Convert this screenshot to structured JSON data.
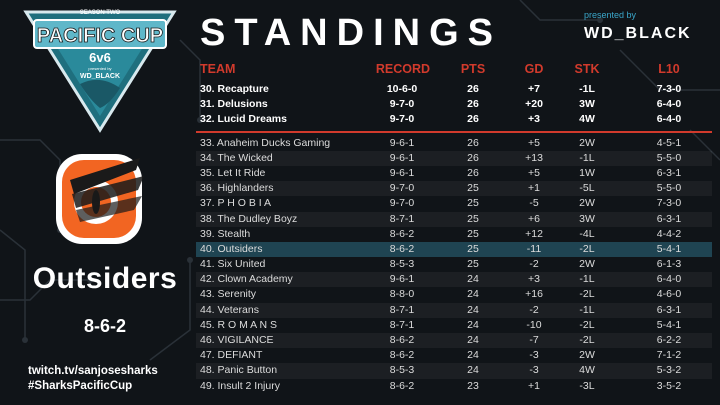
{
  "event": {
    "logo_title": "PACIFIC CUP",
    "logo_format": "6v6",
    "logo_season": "SEASON TWO",
    "logo_presented": "presented by",
    "logo_sponsor": "WD_BLACK"
  },
  "header": {
    "title": "STANDINGS",
    "presented_by": "presented by",
    "sponsor": "WD_BLACK"
  },
  "featured_team": {
    "name": "Outsiders",
    "record": "8-6-2"
  },
  "social": {
    "twitch": "twitch.tv/sanjosesharks",
    "hashtag": "#SharksPacificCup"
  },
  "colors": {
    "accent": "#d13a2c",
    "highlight_row": "#1f4452",
    "logo_teal": "#5fb7c9",
    "team_orange": "#f26522"
  },
  "table": {
    "columns": {
      "team": "TEAM",
      "record": "RECORD",
      "pts": "PTS",
      "gd": "GD",
      "stk": "STK",
      "l10": "L10"
    },
    "top_rows": [
      {
        "team": "30.  Recapture",
        "record": "10-6-0",
        "pts": "26",
        "gd": "+7",
        "stk": "-1L",
        "l10": "7-3-0"
      },
      {
        "team": "31.  Delusions",
        "record": "9-7-0",
        "pts": "26",
        "gd": "+20",
        "stk": "3W",
        "l10": "6-4-0"
      },
      {
        "team": "32.  Lucid Dreams",
        "record": "9-7-0",
        "pts": "26",
        "gd": "+3",
        "stk": "4W",
        "l10": "6-4-0"
      }
    ],
    "rows": [
      {
        "team": "33.  Anaheim Ducks Gaming",
        "record": "9-6-1",
        "pts": "26",
        "gd": "+5",
        "stk": "2W",
        "l10": "4-5-1"
      },
      {
        "team": "34.  The Wicked",
        "record": "9-6-1",
        "pts": "26",
        "gd": "+13",
        "stk": "-1L",
        "l10": "5-5-0"
      },
      {
        "team": "35.  Let It Ride",
        "record": "9-6-1",
        "pts": "26",
        "gd": "+5",
        "stk": "1W",
        "l10": "6-3-1"
      },
      {
        "team": "36.  Highlanders",
        "record": "9-7-0",
        "pts": "25",
        "gd": "+1",
        "stk": "-5L",
        "l10": "5-5-0"
      },
      {
        "team": "37.  P H O B I A",
        "record": "9-7-0",
        "pts": "25",
        "gd": "-5",
        "stk": "2W",
        "l10": "7-3-0"
      },
      {
        "team": "38.  The Dudley Boyz",
        "record": "8-7-1",
        "pts": "25",
        "gd": "+6",
        "stk": "3W",
        "l10": "6-3-1"
      },
      {
        "team": "39.  Stealth",
        "record": "8-6-2",
        "pts": "25",
        "gd": "+12",
        "stk": "-4L",
        "l10": "4-4-2"
      },
      {
        "team": "40.  Outsiders",
        "record": "8-6-2",
        "pts": "25",
        "gd": "-11",
        "stk": "-2L",
        "l10": "5-4-1"
      },
      {
        "team": "41.  Six United",
        "record": "8-5-3",
        "pts": "25",
        "gd": "-2",
        "stk": "2W",
        "l10": "6-1-3"
      },
      {
        "team": "42.  Clown Academy",
        "record": "9-6-1",
        "pts": "24",
        "gd": "+3",
        "stk": "-1L",
        "l10": "6-4-0"
      },
      {
        "team": "43.  Serenity",
        "record": "8-8-0",
        "pts": "24",
        "gd": "+16",
        "stk": "-2L",
        "l10": "4-6-0"
      },
      {
        "team": "44.  Veterans",
        "record": "8-7-1",
        "pts": "24",
        "gd": "-2",
        "stk": "-1L",
        "l10": "6-3-1"
      },
      {
        "team": "45.  R O M A N S",
        "record": "8-7-1",
        "pts": "24",
        "gd": "-10",
        "stk": "-2L",
        "l10": "5-4-1"
      },
      {
        "team": "46.  VIGILANCE",
        "record": "8-6-2",
        "pts": "24",
        "gd": "-7",
        "stk": "-2L",
        "l10": "6-2-2"
      },
      {
        "team": "47.  DEFIANT",
        "record": "8-6-2",
        "pts": "24",
        "gd": "-3",
        "stk": "2W",
        "l10": "7-1-2"
      },
      {
        "team": "48.  Panic Button",
        "record": "8-5-3",
        "pts": "24",
        "gd": "-3",
        "stk": "4W",
        "l10": "5-3-2"
      },
      {
        "team": "49.  Insult 2 Injury",
        "record": "8-6-2",
        "pts": "23",
        "gd": "+1",
        "stk": "-3L",
        "l10": "3-5-2"
      }
    ]
  }
}
